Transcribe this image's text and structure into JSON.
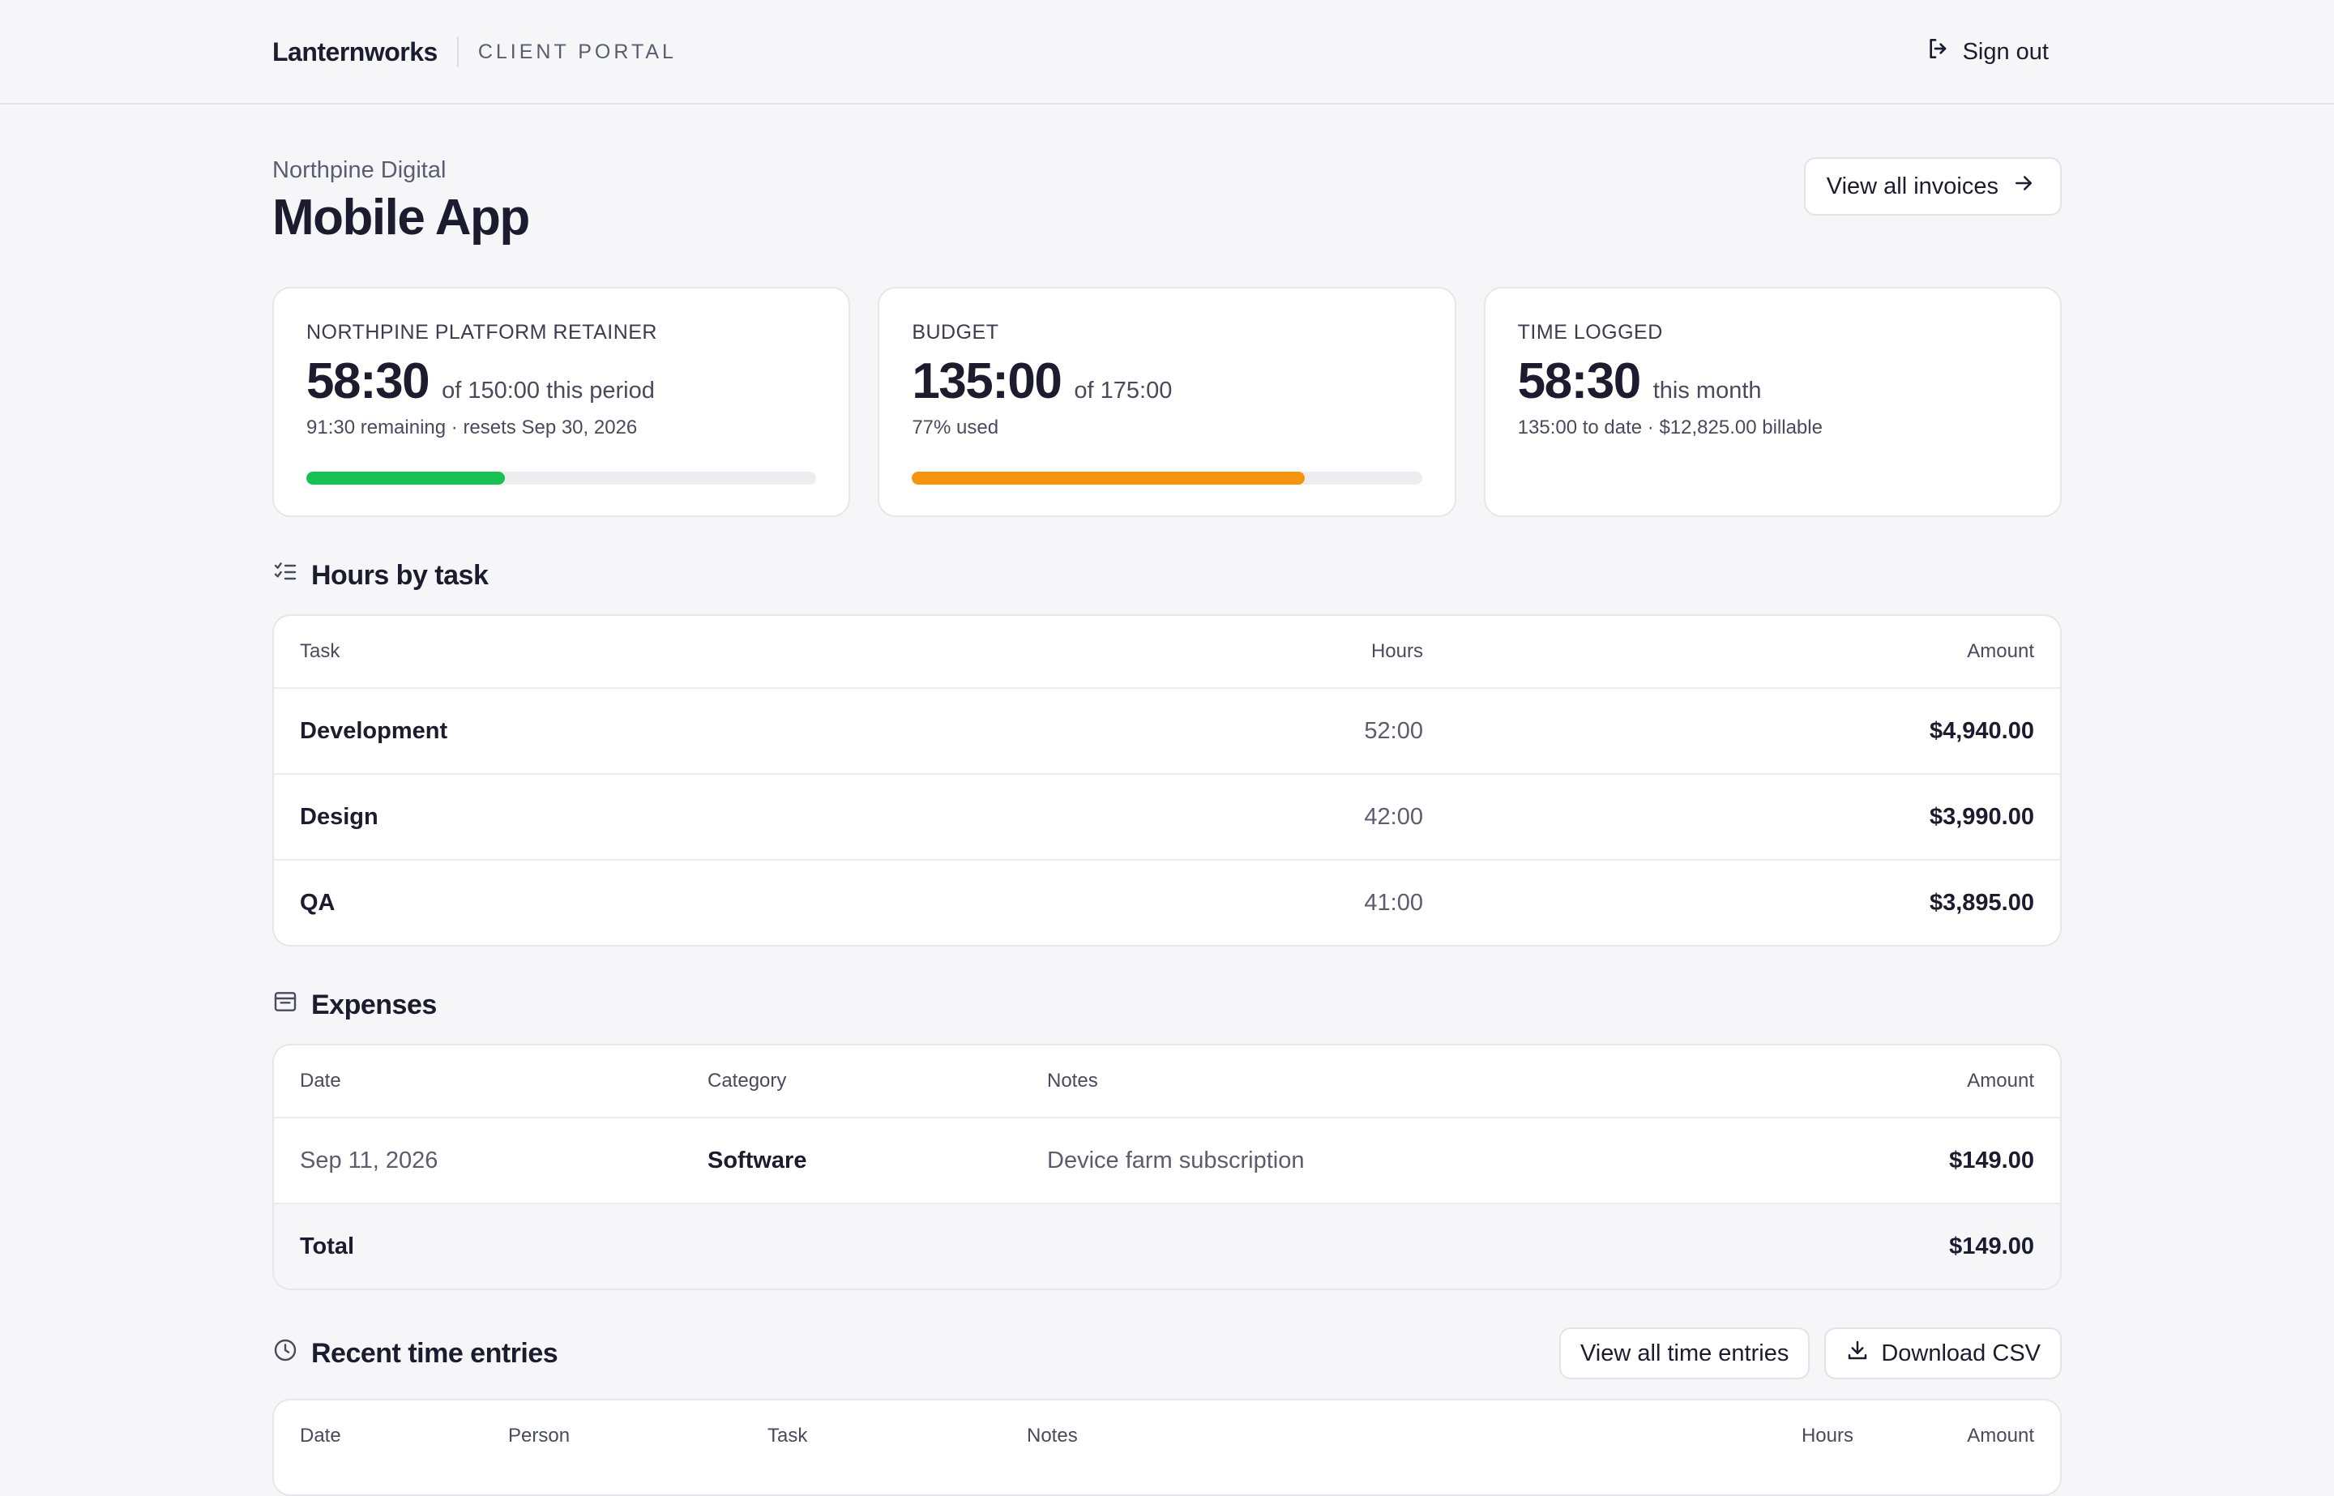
{
  "brand": {
    "name": "Lanternworks",
    "portal": "CLIENT PORTAL"
  },
  "nav": {
    "signout_label": "Sign out"
  },
  "header": {
    "client": "Northpine Digital",
    "project": "Mobile App",
    "invoices_label": "View all invoices"
  },
  "cards": {
    "retainer": {
      "label": "NORTHPINE PLATFORM RETAINER",
      "value": "58:30",
      "suffix": "of 150:00 this period",
      "sub": "91:30 remaining · resets Sep 30, 2026",
      "progress": 0.39,
      "color": "#16c153"
    },
    "budget": {
      "label": "BUDGET",
      "value": "135:00",
      "suffix": "of 175:00",
      "sub": "77% used",
      "progress": 0.77,
      "color": "#f7940d"
    },
    "time": {
      "label": "TIME LOGGED",
      "value": "58:30",
      "suffix": "this month",
      "sub": "135:00 to date · $12,825.00 billable"
    }
  },
  "hours": {
    "title": "Hours by task",
    "columns": {
      "task": "Task",
      "hours": "Hours",
      "amount": "Amount"
    },
    "rows": [
      {
        "task": "Development",
        "hours": "52:00",
        "amount": "$4,940.00"
      },
      {
        "task": "Design",
        "hours": "42:00",
        "amount": "$3,990.00"
      },
      {
        "task": "QA",
        "hours": "41:00",
        "amount": "$3,895.00"
      }
    ]
  },
  "expenses": {
    "title": "Expenses",
    "columns": {
      "date": "Date",
      "category": "Category",
      "notes": "Notes",
      "amount": "Amount"
    },
    "rows": [
      {
        "date": "Sep 11, 2026",
        "category": "Software",
        "notes": "Device farm subscription",
        "amount": "$149.00"
      }
    ],
    "total_label": "Total",
    "total_amount": "$149.00"
  },
  "entries": {
    "title": "Recent time entries",
    "view_all_label": "View all time entries",
    "download_label": "Download CSV",
    "columns": {
      "date": "Date",
      "person": "Person",
      "task": "Task",
      "notes": "Notes",
      "hours": "Hours",
      "amount": "Amount"
    }
  }
}
